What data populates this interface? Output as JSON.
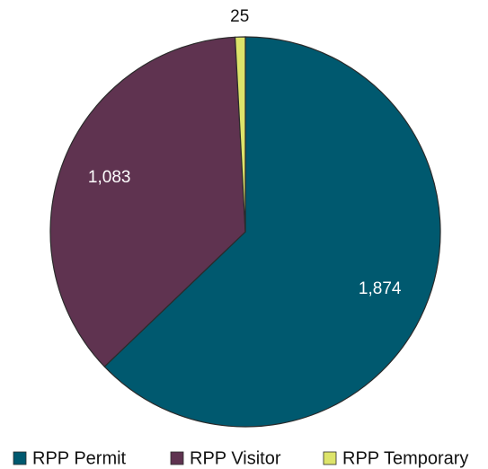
{
  "chart_data": {
    "type": "pie",
    "categories": [
      "RPP Permit",
      "RPP Visitor",
      "RPP Temporary"
    ],
    "values": [
      1874,
      1083,
      25
    ],
    "value_labels": [
      "1,874",
      "1,083",
      "25"
    ],
    "colors": [
      "#00596f",
      "#5f3350",
      "#dde46a"
    ],
    "legend": "bottom"
  }
}
